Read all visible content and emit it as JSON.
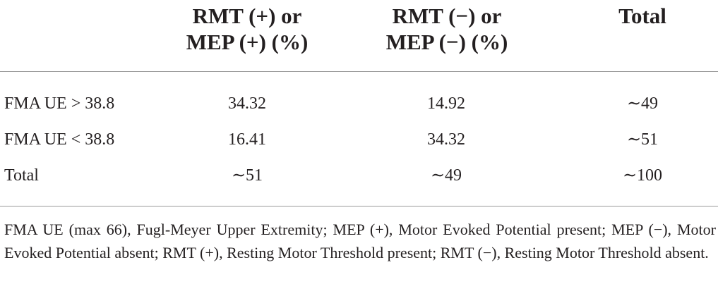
{
  "table": {
    "headers": [
      {
        "line1": "RMT (+) or",
        "line2": "MEP (+) (%)"
      },
      {
        "line1": "RMT (−) or",
        "line2": "MEP (−) (%)"
      },
      {
        "line1": "Total",
        "line2": ""
      }
    ],
    "rows": [
      {
        "label": "FMA UE > 38.8",
        "values": [
          "34.32",
          "14.92",
          "∼49"
        ]
      },
      {
        "label": "FMA UE < 38.8",
        "values": [
          "16.41",
          "34.32",
          "∼51"
        ]
      },
      {
        "label": "Total",
        "values": [
          "∼51",
          "∼49",
          "∼100"
        ]
      }
    ]
  },
  "footnote": "FMA UE (max 66), Fugl-Meyer Upper Extremity; MEP (+), Motor Evoked Potential present; MEP (−), Motor Evoked Potential absent; RMT (+), Resting Motor Threshold present; RMT (−), Resting Motor Threshold absent."
}
